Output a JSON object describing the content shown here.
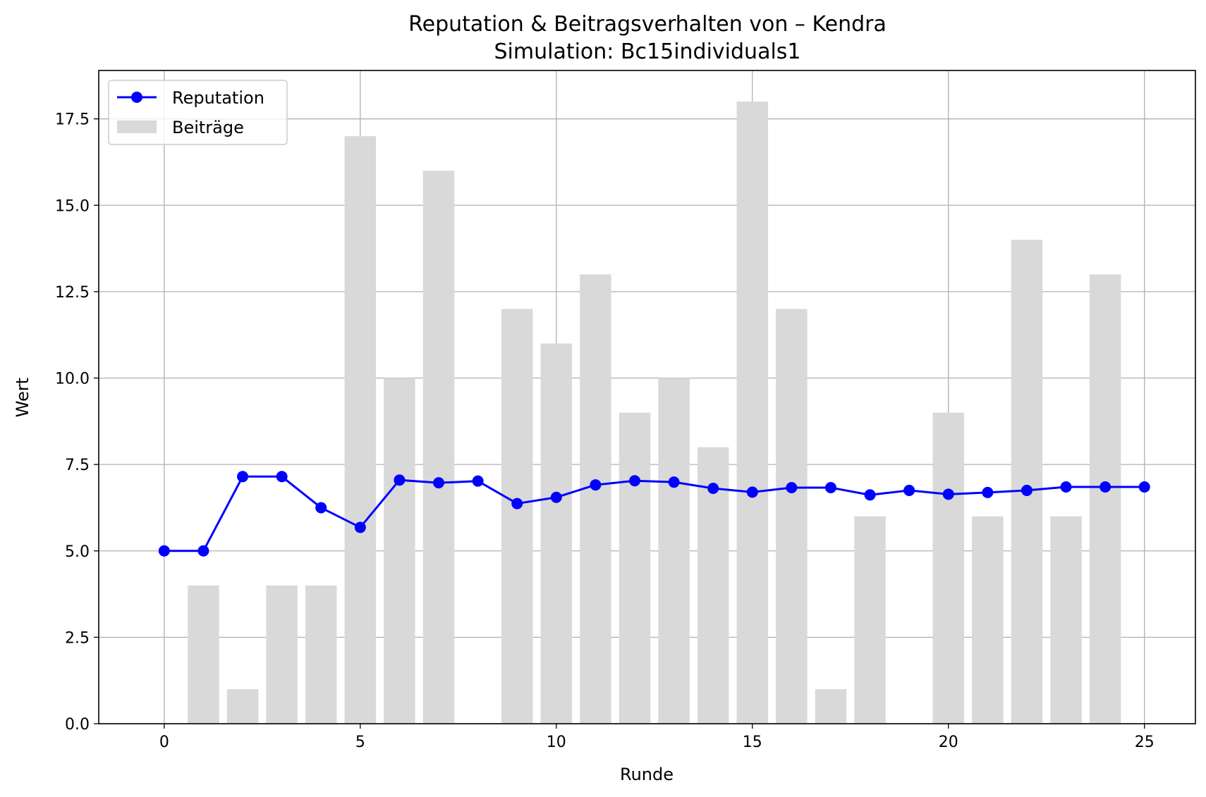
{
  "chart_data": {
    "type": "bar+line",
    "title": "Reputation & Beitragsverhalten von – Kendra",
    "subtitle": "Simulation: Bc15individuals1",
    "xlabel": "Runde",
    "ylabel": "Wert",
    "xlim": [
      -1.67,
      26.3
    ],
    "ylim": [
      0,
      18.9
    ],
    "xticks": [
      0,
      5,
      10,
      15,
      20,
      25
    ],
    "xtick_labels": [
      "0",
      "5",
      "10",
      "15",
      "20",
      "25"
    ],
    "yticks": [
      0,
      2.5,
      5,
      7.5,
      10,
      12.5,
      15,
      17.5
    ],
    "ytick_labels": [
      "0.0",
      "2.5",
      "5.0",
      "7.5",
      "10.0",
      "12.5",
      "15.0",
      "17.5"
    ],
    "grid": true,
    "legend_position": "top-left",
    "series": [
      {
        "name": "Reputation",
        "kind": "line",
        "marker": "circle",
        "color": "#0000ff",
        "x": [
          0,
          1,
          2,
          3,
          4,
          5,
          6,
          7,
          8,
          9,
          10,
          11,
          12,
          13,
          14,
          15,
          16,
          17,
          18,
          19,
          20,
          21,
          22,
          23,
          24,
          25
        ],
        "values": [
          5.0,
          5.0,
          7.15,
          7.15,
          6.25,
          5.68,
          7.05,
          6.97,
          7.02,
          6.37,
          6.55,
          6.91,
          7.03,
          6.99,
          6.81,
          6.7,
          6.83,
          6.83,
          6.62,
          6.75,
          6.64,
          6.69,
          6.75,
          6.85,
          6.85,
          6.85
        ]
      },
      {
        "name": "Beiträge",
        "kind": "bar",
        "color": "#d9d9d9",
        "x": [
          1,
          2,
          3,
          4,
          5,
          6,
          7,
          9,
          10,
          11,
          12,
          13,
          14,
          15,
          16,
          17,
          18,
          20,
          21,
          22,
          23,
          24
        ],
        "values": [
          4,
          1,
          4,
          4,
          17,
          10,
          16,
          12,
          11,
          13,
          9,
          10,
          8,
          18,
          12,
          1,
          6,
          9,
          6,
          14,
          6,
          13
        ]
      }
    ]
  }
}
